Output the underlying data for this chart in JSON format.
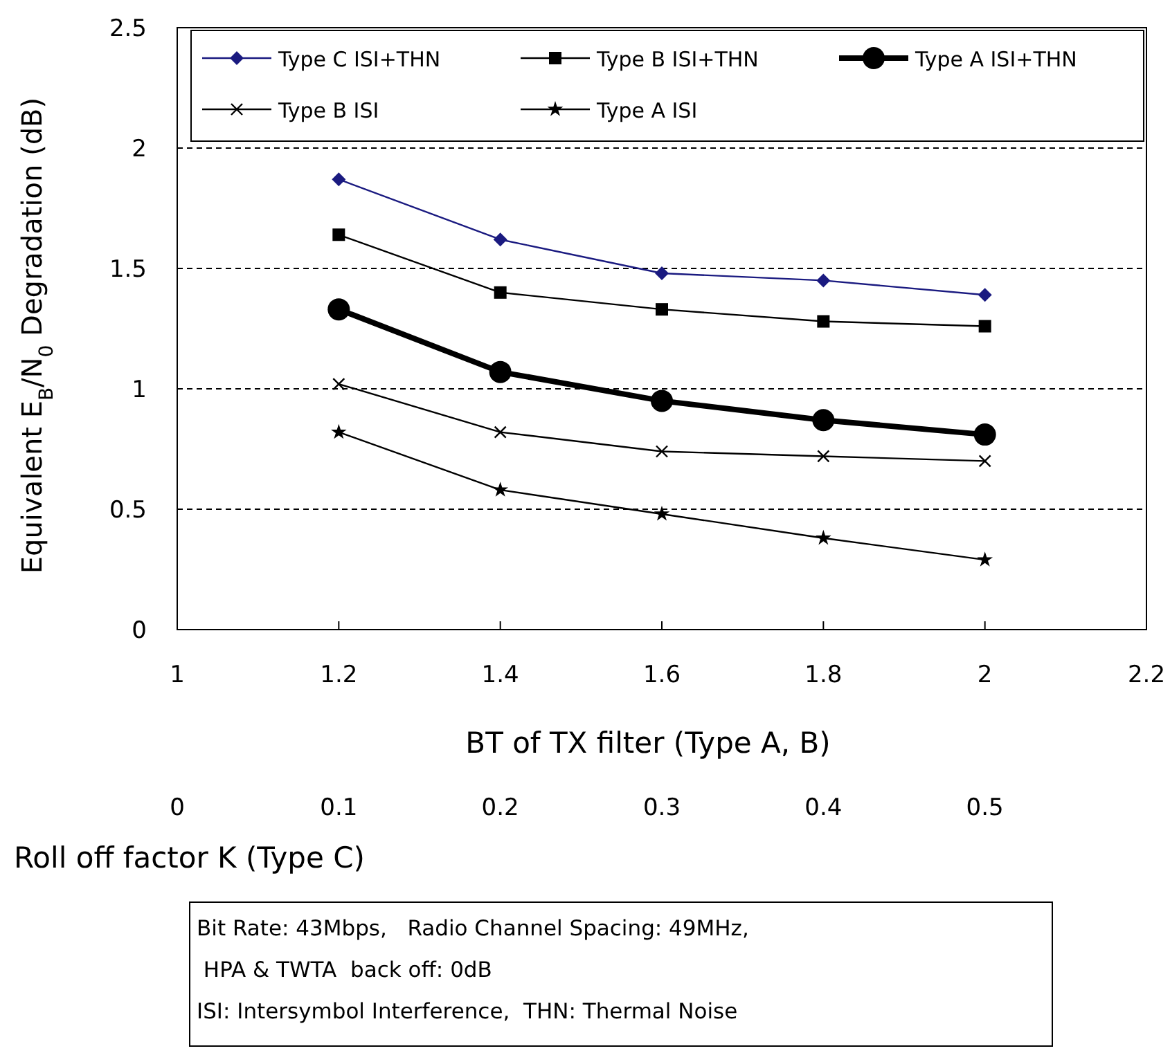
{
  "chart_data": {
    "type": "line",
    "ylabel": "Equivalent E$_{B}$/N$_{0}$ Degradation  (dB)",
    "xlabel": "BT of TX filter (Type  A, B)",
    "x2label": "Roll off factor K (Type C)",
    "x": [
      1.2,
      1.4,
      1.6,
      1.8,
      2
    ],
    "xlim": [
      1,
      2.2
    ],
    "xticks": [
      1,
      1.2,
      1.4,
      1.6,
      1.8,
      2,
      2.2
    ],
    "x2lim": [
      0,
      0.6
    ],
    "x2ticks": [
      0,
      0.1,
      0.2,
      0.3,
      0.4,
      0.5
    ],
    "ylim": [
      0,
      2.5
    ],
    "yticks": [
      0,
      0.5,
      1,
      1.5,
      2,
      2.5
    ],
    "grid": "y",
    "legend": "top",
    "series": [
      {
        "name": "Type C ISI+THN",
        "color": "#1a1a80",
        "marker": "diamond",
        "values": [
          1.87,
          1.62,
          1.48,
          1.45,
          1.39
        ]
      },
      {
        "name": "Type B ISI+THN",
        "color": "#000000",
        "marker": "square",
        "values": [
          1.64,
          1.4,
          1.33,
          1.28,
          1.26
        ]
      },
      {
        "name": "Type A ISI+THN",
        "color": "#000000",
        "marker": "circle",
        "values": [
          1.33,
          1.07,
          0.95,
          0.87,
          0.81
        ]
      },
      {
        "name": "Type B ISI",
        "color": "#000000",
        "marker": "cross",
        "values": [
          1.02,
          0.82,
          0.74,
          0.72,
          0.7
        ]
      },
      {
        "name": "Type A ISI",
        "color": "#000000",
        "marker": "star",
        "values": [
          0.82,
          0.58,
          0.48,
          0.38,
          0.29
        ]
      }
    ],
    "annotations": [
      "Bit Rate: 43Mbps,   Radio Channel Spacing: 49MHz,",
      " HPA & TWTA  back off: 0dB",
      "ISI: Intersymbol Interference,  THN: Thermal Noise"
    ]
  }
}
